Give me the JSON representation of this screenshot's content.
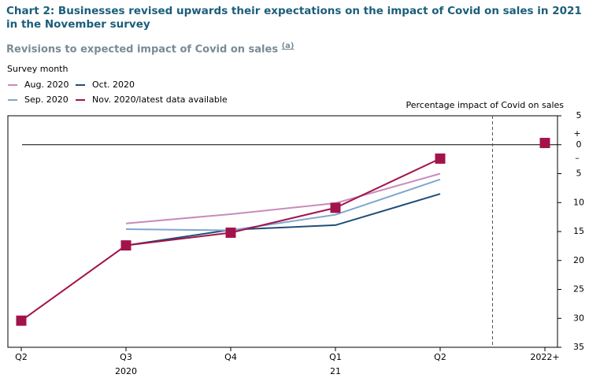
{
  "chart_data": {
    "type": "line",
    "title": "Chart 2: Businesses revised upwards their expectations on the impact of Covid on sales in 2021 in the November survey",
    "subtitle": "Revisions to expected impact of Covid on sales",
    "footnote_marker": "(a)",
    "legend_title": "Survey month",
    "y_axis_label": "Percentage impact of Covid on sales",
    "sign_annotations": [
      "+",
      "–"
    ],
    "categories": [
      "Q2",
      "Q3",
      "Q4",
      "Q1",
      "Q2",
      "2022+"
    ],
    "year_labels": [
      null,
      "2020",
      null,
      "21",
      null,
      null
    ],
    "series": [
      {
        "name": "Aug. 2020",
        "color": "#c98bb9",
        "values": [
          null,
          -13.6,
          -12.0,
          -10.1,
          -5.0,
          null
        ]
      },
      {
        "name": "Oct. 2020",
        "color": "#1f4e79",
        "values": [
          null,
          -17.4,
          -14.7,
          -13.9,
          -8.5,
          null
        ]
      },
      {
        "name": "Sep. 2020",
        "color": "#7fa6d0",
        "values": [
          null,
          -14.6,
          -14.8,
          -12.1,
          -6.0,
          null
        ]
      },
      {
        "name": "Nov. 2020/latest data available",
        "color": "#a3134b",
        "markers": true,
        "values": [
          -30.4,
          -17.4,
          -15.2,
          -10.9,
          -2.4,
          0.3
        ]
      }
    ],
    "divider_after_index": 4,
    "ylim": [
      -35,
      5
    ],
    "yticks": [
      5,
      0,
      {
        "value": -5,
        "label": "5"
      },
      {
        "value": -10,
        "label": "10"
      },
      {
        "value": -15,
        "label": "15"
      },
      {
        "value": -20,
        "label": "20"
      },
      {
        "value": -25,
        "label": "25"
      },
      {
        "value": -30,
        "label": "30"
      },
      {
        "value": -35,
        "label": "35"
      }
    ]
  }
}
